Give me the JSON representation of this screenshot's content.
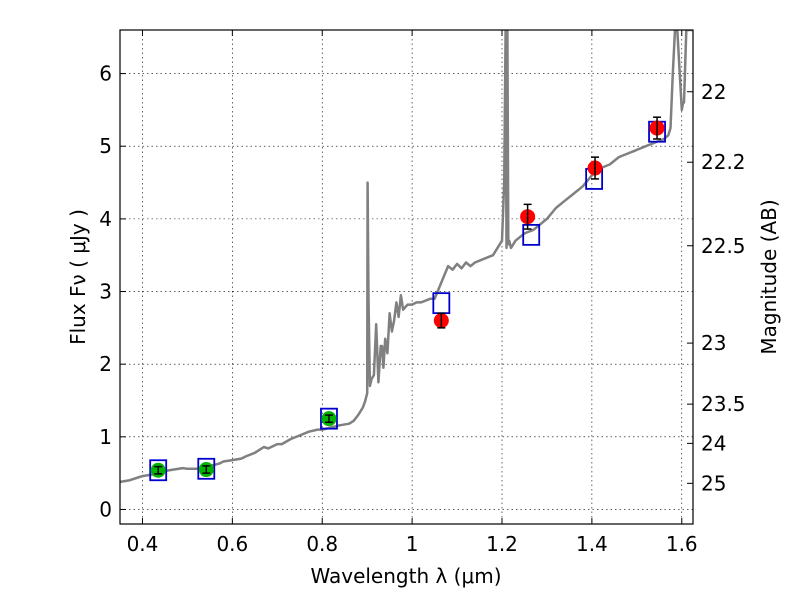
{
  "chart_data": {
    "type": "scatter",
    "xlabel": "Wavelength  λ (μm)",
    "ylabel": "Flux  Fν  ( μJy )",
    "ylabel_right": "Magnitude (AB)",
    "xlim": [
      0.35,
      1.625
    ],
    "ylim": [
      -0.2,
      6.6
    ],
    "grid": true,
    "x_ticks": [
      0.4,
      0.6,
      0.8,
      1.0,
      1.2,
      1.4,
      1.6
    ],
    "x_tick_labels": [
      "0.4",
      "0.6",
      "0.8",
      "1",
      "1.2",
      "1.4",
      "1.6"
    ],
    "y_ticks": [
      0,
      1,
      2,
      3,
      4,
      5,
      6
    ],
    "y_tick_labels": [
      "0",
      "1",
      "2",
      "3",
      "4",
      "5",
      "6"
    ],
    "right_ticks": [
      {
        "label": "22",
        "flux": 5.75
      },
      {
        "label": "22.2",
        "flux": 4.78
      },
      {
        "label": "22.5",
        "flux": 3.63
      },
      {
        "label": "23",
        "flux": 2.29
      },
      {
        "label": "23.5",
        "flux": 1.45
      },
      {
        "label": "24",
        "flux": 0.91
      },
      {
        "label": "25",
        "flux": 0.36
      }
    ],
    "series": [
      {
        "kind": "line",
        "color": "#808080",
        "x": [
          0.35,
          0.37,
          0.39,
          0.4,
          0.42,
          0.44,
          0.45,
          0.47,
          0.49,
          0.5,
          0.52,
          0.54,
          0.55,
          0.57,
          0.58,
          0.6,
          0.62,
          0.63,
          0.65,
          0.66,
          0.67,
          0.68,
          0.7,
          0.71,
          0.73,
          0.75,
          0.77,
          0.79,
          0.8,
          0.82,
          0.84,
          0.86,
          0.87,
          0.88,
          0.89,
          0.895,
          0.9,
          0.901,
          0.903,
          0.906,
          0.91,
          0.915,
          0.92,
          0.925,
          0.93,
          0.933,
          0.936,
          0.94,
          0.945,
          0.95,
          0.955,
          0.96,
          0.965,
          0.97,
          0.975,
          0.98,
          0.99,
          1.0,
          1.01,
          1.02,
          1.04,
          1.05,
          1.06,
          1.07,
          1.08,
          1.09,
          1.1,
          1.11,
          1.12,
          1.13,
          1.14,
          1.16,
          1.18,
          1.2,
          1.205,
          1.208,
          1.21,
          1.212,
          1.214,
          1.216,
          1.22,
          1.23,
          1.25,
          1.27,
          1.3,
          1.32,
          1.34,
          1.36,
          1.38,
          1.4,
          1.42,
          1.44,
          1.46,
          1.48,
          1.5,
          1.52,
          1.54,
          1.56,
          1.57,
          1.575,
          1.58,
          1.585,
          1.59,
          1.6,
          1.603,
          1.605,
          1.61,
          1.615,
          1.62,
          1.625
        ],
        "y": [
          0.38,
          0.4,
          0.44,
          0.46,
          0.48,
          0.5,
          0.53,
          0.55,
          0.57,
          0.56,
          0.56,
          0.57,
          0.6,
          0.63,
          0.66,
          0.68,
          0.7,
          0.73,
          0.78,
          0.82,
          0.86,
          0.84,
          0.9,
          0.9,
          0.97,
          1.02,
          1.07,
          1.1,
          1.1,
          1.13,
          1.16,
          1.18,
          1.22,
          1.3,
          1.4,
          1.48,
          1.6,
          4.5,
          2.9,
          1.7,
          1.8,
          1.85,
          2.55,
          1.75,
          2.25,
          2.25,
          1.95,
          2.35,
          2.15,
          2.7,
          2.45,
          2.6,
          2.85,
          2.65,
          2.95,
          2.75,
          2.82,
          2.82,
          2.85,
          2.85,
          2.9,
          2.9,
          3.05,
          3.2,
          3.35,
          3.3,
          3.38,
          3.32,
          3.4,
          3.35,
          3.4,
          3.45,
          3.5,
          3.7,
          4.5,
          6.6,
          3.6,
          6.6,
          3.65,
          3.7,
          3.6,
          3.7,
          3.8,
          3.85,
          4.0,
          4.15,
          4.25,
          4.35,
          4.45,
          4.6,
          4.7,
          4.75,
          4.85,
          4.9,
          4.95,
          5.0,
          5.05,
          5.1,
          5.15,
          5.25,
          6.0,
          6.6,
          6.6,
          5.5,
          5.6,
          5.6,
          6.6,
          6.6,
          6.6,
          6.6
        ]
      },
      {
        "kind": "model-boxes",
        "color": "#0000cc",
        "x": [
          0.435,
          0.542,
          0.815,
          1.065,
          1.265,
          1.405,
          1.545
        ],
        "y": [
          0.54,
          0.56,
          1.25,
          2.84,
          3.78,
          4.55,
          5.2
        ]
      },
      {
        "kind": "points",
        "color": "#00b400",
        "x": [
          0.435,
          0.542,
          0.815
        ],
        "y": [
          0.54,
          0.55,
          1.25
        ],
        "err": [
          0.05,
          0.05,
          0.05
        ]
      },
      {
        "kind": "points",
        "color": "#ff0000",
        "x": [
          1.065,
          1.257,
          1.407,
          1.545
        ],
        "y": [
          2.6,
          4.03,
          4.7,
          5.25
        ],
        "err": [
          0.1,
          0.17,
          0.15,
          0.15
        ]
      }
    ]
  }
}
